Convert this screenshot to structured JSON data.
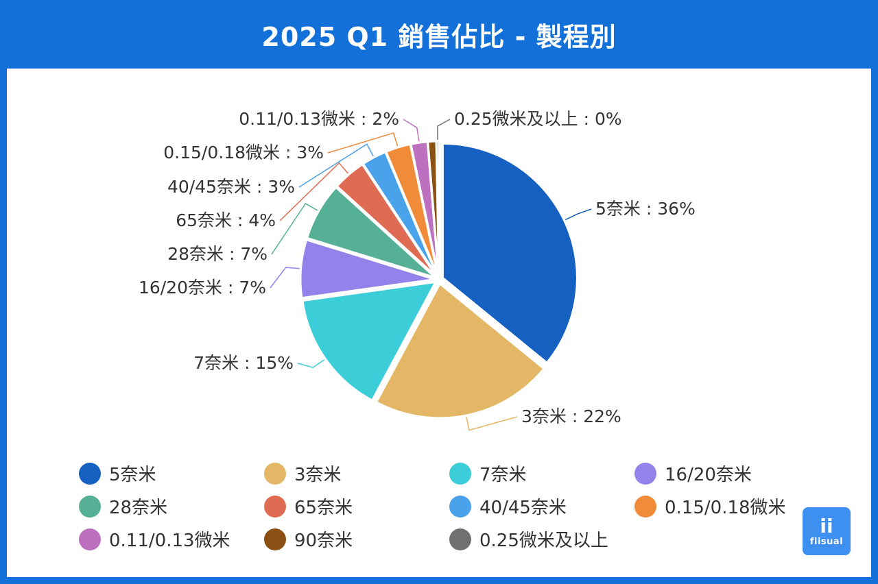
{
  "header": {
    "title": "2025 Q1 銷售佔比 - 製程別"
  },
  "chart_data": {
    "type": "pie",
    "title": "2025 Q1 銷售佔比 - 製程別",
    "slices": [
      {
        "name": "5奈米",
        "value": 36,
        "label": "5奈米 : 36%",
        "color": "#1560c0"
      },
      {
        "name": "3奈米",
        "value": 22,
        "label": "3奈米 : 22%",
        "color": "#e3b765"
      },
      {
        "name": "7奈米",
        "value": 15,
        "label": "7奈米 : 15%",
        "color": "#3bcdd8"
      },
      {
        "name": "16/20奈米",
        "value": 7,
        "label": "16/20奈米 : 7%",
        "color": "#9282ea"
      },
      {
        "name": "28奈米",
        "value": 7,
        "label": "28奈米 : 7%",
        "color": "#55b095"
      },
      {
        "name": "65奈米",
        "value": 4,
        "label": "65奈米 : 4%",
        "color": "#e06b53"
      },
      {
        "name": "40/45奈米",
        "value": 3,
        "label": "40/45奈米 : 3%",
        "color": "#4aa2ea"
      },
      {
        "name": "0.15/0.18微米",
        "value": 3,
        "label": "0.15/0.18微米 : 3%",
        "color": "#f08b3a"
      },
      {
        "name": "0.11/0.13微米",
        "value": 2,
        "label": "0.11/0.13微米 : 2%",
        "color": "#bd70c0"
      },
      {
        "name": "90奈米",
        "value": 1,
        "label": "",
        "color": "#8b5013"
      },
      {
        "name": "0.25微米及以上",
        "value": 0.3,
        "label": "0.25微米及以上 : 0%",
        "color": "#707070"
      }
    ],
    "legend": [
      {
        "name": "5奈米",
        "color": "#1560c0"
      },
      {
        "name": "3奈米",
        "color": "#e3b765"
      },
      {
        "name": "7奈米",
        "color": "#3bcdd8"
      },
      {
        "name": "16/20奈米",
        "color": "#9282ea"
      },
      {
        "name": "28奈米",
        "color": "#55b095"
      },
      {
        "name": "65奈米",
        "color": "#e06b53"
      },
      {
        "name": "40/45奈米",
        "color": "#4aa2ea"
      },
      {
        "name": "0.15/0.18微米",
        "color": "#f08b3a"
      },
      {
        "name": "0.11/0.13微米",
        "color": "#bd70c0"
      },
      {
        "name": "90奈米",
        "color": "#8b5013"
      },
      {
        "name": "0.25微米及以上",
        "color": "#707070"
      }
    ],
    "legend_position": "bottom"
  },
  "logo": {
    "mark": "ii",
    "text": "fiisual"
  }
}
